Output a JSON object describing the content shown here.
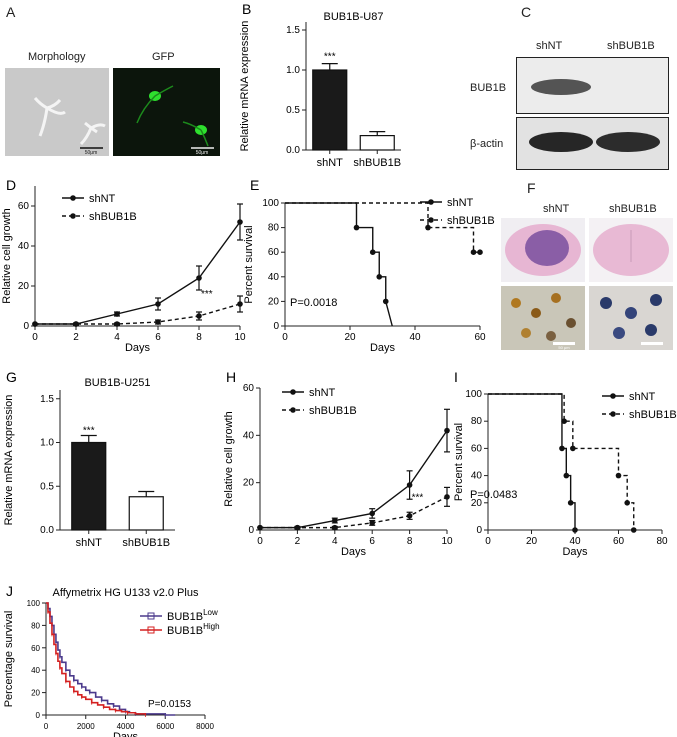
{
  "panels": {
    "A": {
      "letter": "A",
      "label_morphology": "Morphology",
      "label_gfp": "GFP",
      "scale_bar": "50μm"
    },
    "C": {
      "letter": "C",
      "col_shnt": "shNT",
      "col_shbub1b": "shBUB1B",
      "row_bub1b": "BUB1B",
      "row_actin": "β-actin"
    },
    "F": {
      "letter": "F",
      "col_shnt": "shNT",
      "col_shbub1b": "shBUB1B",
      "scale_bar": "50 μm"
    }
  },
  "chart_data": [
    {
      "id": "B",
      "letter": "B",
      "type": "bar",
      "title": "BUB1B-U87",
      "ylabel": "Relative mRNA expression",
      "xlabel": "",
      "categories": [
        "shNT",
        "shBUB1B"
      ],
      "values": [
        1.0,
        0.18
      ],
      "errors": [
        0.08,
        0.05
      ],
      "fills": [
        "#1a1a1a",
        "#ffffff"
      ],
      "ylim": [
        0,
        1.6
      ],
      "yticks": [
        "0.0",
        "0.5",
        "1.0",
        "1.5"
      ],
      "ytick_values": [
        0,
        0.5,
        1.0,
        1.5
      ],
      "annotation": "***"
    },
    {
      "id": "D",
      "letter": "D",
      "type": "line",
      "title": "",
      "xlabel": "Days",
      "ylabel": "Relative cell growth",
      "xlim": [
        0,
        10
      ],
      "ylim": [
        0,
        70
      ],
      "xticks": [
        "0",
        "2",
        "4",
        "6",
        "8",
        "10"
      ],
      "xtick_values": [
        0,
        2,
        4,
        6,
        8,
        10
      ],
      "yticks": [
        "0",
        "20",
        "40",
        "60"
      ],
      "ytick_values": [
        0,
        20,
        40,
        60
      ],
      "x": [
        0,
        2,
        4,
        6,
        8,
        10
      ],
      "series": [
        {
          "name": "shNT",
          "values": [
            1,
            1,
            6,
            11,
            24,
            52
          ],
          "errors": [
            0,
            0.5,
            1,
            3,
            6,
            9
          ],
          "dashed": false
        },
        {
          "name": "shBUB1B",
          "values": [
            1,
            1,
            1,
            2,
            5,
            11
          ],
          "errors": [
            0,
            0.3,
            0.5,
            1,
            2,
            4
          ],
          "dashed": true
        }
      ],
      "annotation": "***",
      "legend": "top-left"
    },
    {
      "id": "E",
      "letter": "E",
      "type": "line",
      "title": "",
      "xlabel": "Days",
      "ylabel": "Percent  survival",
      "xlim": [
        0,
        60
      ],
      "ylim": [
        0,
        100
      ],
      "xticks": [
        "0",
        "20",
        "40",
        "60"
      ],
      "xtick_values": [
        0,
        20,
        40,
        60
      ],
      "yticks": [
        "0",
        "20",
        "40",
        "60",
        "80",
        "100"
      ],
      "ytick_values": [
        0,
        20,
        40,
        60,
        80,
        100
      ],
      "series": [
        {
          "name": "shNT",
          "x": [
            0,
            22,
            22,
            27,
            27,
            29,
            29,
            31,
            31,
            33
          ],
          "values": [
            100,
            100,
            80,
            80,
            60,
            60,
            40,
            40,
            20,
            0
          ],
          "markers": [
            [
              22,
              80
            ],
            [
              27,
              60
            ],
            [
              29,
              40
            ],
            [
              31,
              20
            ]
          ],
          "dashed": false
        },
        {
          "name": "shBUB1B",
          "x": [
            0,
            44,
            44,
            58,
            58,
            60
          ],
          "values": [
            100,
            100,
            80,
            80,
            60,
            60
          ],
          "markers": [
            [
              44,
              80
            ],
            [
              58,
              60
            ],
            [
              60,
              60
            ]
          ],
          "dashed": true
        }
      ],
      "annotation": "P=0.0018",
      "legend": "top-right"
    },
    {
      "id": "G",
      "letter": "G",
      "type": "bar",
      "title": "BUB1B-U251",
      "ylabel": "Relative mRNA expression",
      "xlabel": "",
      "categories": [
        "shNT",
        "shBUB1B"
      ],
      "values": [
        1.0,
        0.38
      ],
      "errors": [
        0.08,
        0.06
      ],
      "fills": [
        "#1a1a1a",
        "#ffffff"
      ],
      "ylim": [
        0,
        1.6
      ],
      "yticks": [
        "0.0",
        "0.5",
        "1.0",
        "1.5"
      ],
      "ytick_values": [
        0,
        0.5,
        1.0,
        1.5
      ],
      "annotation": "***"
    },
    {
      "id": "H",
      "letter": "H",
      "type": "line",
      "title": "",
      "xlabel": "Days",
      "ylabel": "Relative cell growth",
      "xlim": [
        0,
        10
      ],
      "ylim": [
        0,
        60
      ],
      "xticks": [
        "0",
        "2",
        "4",
        "6",
        "8",
        "10"
      ],
      "xtick_values": [
        0,
        2,
        4,
        6,
        8,
        10
      ],
      "yticks": [
        "0",
        "20",
        "40",
        "60"
      ],
      "ytick_values": [
        0,
        20,
        40,
        60
      ],
      "x": [
        0,
        2,
        4,
        6,
        8,
        10
      ],
      "series": [
        {
          "name": "shNT",
          "values": [
            1,
            1,
            4,
            7,
            19,
            42
          ],
          "errors": [
            0,
            0.5,
            1,
            2,
            6,
            9
          ],
          "dashed": false
        },
        {
          "name": "shBUB1B",
          "values": [
            1,
            1,
            1,
            3,
            6,
            14
          ],
          "errors": [
            0,
            0.3,
            0.5,
            1,
            1.5,
            4
          ],
          "dashed": true
        }
      ],
      "annotation": "***",
      "legend": "top-left"
    },
    {
      "id": "I",
      "letter": "I",
      "type": "line",
      "title": "",
      "xlabel": "Days",
      "ylabel": "Percent  survival",
      "xlim": [
        0,
        80
      ],
      "ylim": [
        0,
        100
      ],
      "xticks": [
        "0",
        "20",
        "40",
        "60",
        "80"
      ],
      "xtick_values": [
        0,
        20,
        40,
        60,
        80
      ],
      "yticks": [
        "0",
        "20",
        "40",
        "60",
        "80",
        "100"
      ],
      "ytick_values": [
        0,
        20,
        40,
        60,
        80,
        100
      ],
      "series": [
        {
          "name": "shNT",
          "x": [
            0,
            34,
            34,
            36,
            36,
            38,
            38,
            40,
            40
          ],
          "values": [
            100,
            100,
            60,
            60,
            40,
            40,
            20,
            20,
            0
          ],
          "markers": [
            [
              34,
              60
            ],
            [
              36,
              40
            ],
            [
              38,
              20
            ],
            [
              40,
              0
            ]
          ],
          "dashed": false
        },
        {
          "name": "shBUB1B",
          "x": [
            0,
            35,
            35,
            39,
            39,
            60,
            60,
            64,
            64,
            67,
            67
          ],
          "values": [
            100,
            100,
            80,
            80,
            60,
            60,
            40,
            40,
            20,
            20,
            0
          ],
          "markers": [
            [
              35,
              80
            ],
            [
              39,
              60
            ],
            [
              60,
              40
            ],
            [
              64,
              20
            ],
            [
              67,
              0
            ]
          ],
          "dashed": true
        }
      ],
      "annotation": "P=0.0483",
      "legend": "top-right"
    },
    {
      "id": "J",
      "letter": "J",
      "type": "line",
      "title": "Affymetrix HG U133 v2.0 Plus",
      "xlabel": "Days",
      "ylabel": "Percentage survival",
      "xlim": [
        0,
        8000
      ],
      "ylim": [
        0,
        100
      ],
      "xticks": [
        "0",
        "2000",
        "4000",
        "6000",
        "8000"
      ],
      "xtick_values": [
        0,
        2000,
        4000,
        6000,
        8000
      ],
      "yticks": [
        "0",
        "20",
        "40",
        "60",
        "80",
        "100"
      ],
      "ytick_values": [
        0,
        20,
        40,
        60,
        80,
        100
      ],
      "series": [
        {
          "name": "BUB1B",
          "sup": "Low",
          "color": "#4b3a8c",
          "x": [
            0,
            100,
            200,
            300,
            400,
            500,
            600,
            700,
            800,
            1000,
            1200,
            1400,
            1600,
            1800,
            2000,
            2200,
            2500,
            2800,
            3100,
            3400,
            3700,
            4000,
            4200,
            4500,
            5000,
            6000,
            6500
          ],
          "values": [
            100,
            95,
            88,
            80,
            72,
            65,
            58,
            52,
            47,
            40,
            35,
            31,
            28,
            25,
            22,
            20,
            16,
            13,
            10,
            8,
            5,
            3,
            2,
            1,
            1,
            0,
            0
          ]
        },
        {
          "name": "BUB1B",
          "sup": "High",
          "color": "#d42020",
          "x": [
            0,
            100,
            200,
            300,
            400,
            500,
            600,
            700,
            800,
            1000,
            1200,
            1400,
            1600,
            1800,
            2000,
            2300,
            2600,
            2900,
            3200,
            3500,
            3800,
            4100,
            4500,
            5000
          ],
          "values": [
            100,
            92,
            82,
            72,
            63,
            55,
            48,
            42,
            37,
            30,
            25,
            21,
            18,
            16,
            14,
            11,
            9,
            7,
            5,
            4,
            3,
            2,
            1,
            0
          ]
        }
      ],
      "annotation": "P=0.0153",
      "legend": "top-right"
    }
  ]
}
